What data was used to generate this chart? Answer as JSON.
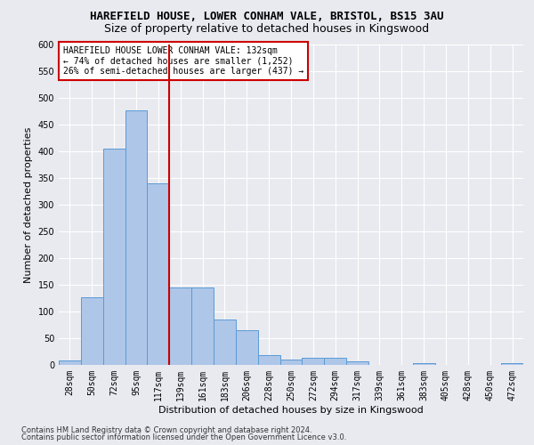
{
  "title": "HAREFIELD HOUSE, LOWER CONHAM VALE, BRISTOL, BS15 3AU",
  "subtitle": "Size of property relative to detached houses in Kingswood",
  "xlabel": "Distribution of detached houses by size in Kingswood",
  "ylabel": "Number of detached properties",
  "categories": [
    "28sqm",
    "50sqm",
    "72sqm",
    "95sqm",
    "117sqm",
    "139sqm",
    "161sqm",
    "183sqm",
    "206sqm",
    "228sqm",
    "250sqm",
    "272sqm",
    "294sqm",
    "317sqm",
    "339sqm",
    "361sqm",
    "383sqm",
    "405sqm",
    "428sqm",
    "450sqm",
    "472sqm"
  ],
  "values": [
    8,
    127,
    405,
    477,
    340,
    145,
    145,
    85,
    65,
    18,
    10,
    13,
    13,
    6,
    0,
    0,
    4,
    0,
    0,
    0,
    4
  ],
  "bar_color": "#aec6e8",
  "bar_edge_color": "#5b9bd5",
  "background_color": "#e8eaf0",
  "grid_color": "#ffffff",
  "red_line_index": 5,
  "annotation_title": "HAREFIELD HOUSE LOWER CONHAM VALE: 132sqm",
  "annotation_line1": "← 74% of detached houses are smaller (1,252)",
  "annotation_line2": "26% of semi-detached houses are larger (437) →",
  "annotation_box_color": "#ffffff",
  "annotation_box_edge": "#cc0000",
  "red_line_color": "#cc0000",
  "ylim": [
    0,
    600
  ],
  "yticks": [
    0,
    50,
    100,
    150,
    200,
    250,
    300,
    350,
    400,
    450,
    500,
    550,
    600
  ],
  "footer1": "Contains HM Land Registry data © Crown copyright and database right 2024.",
  "footer2": "Contains public sector information licensed under the Open Government Licence v3.0.",
  "title_fontsize": 9,
  "subtitle_fontsize": 9,
  "tick_fontsize": 7,
  "ylabel_fontsize": 8,
  "xlabel_fontsize": 8,
  "annotation_fontsize": 7,
  "footer_fontsize": 6
}
